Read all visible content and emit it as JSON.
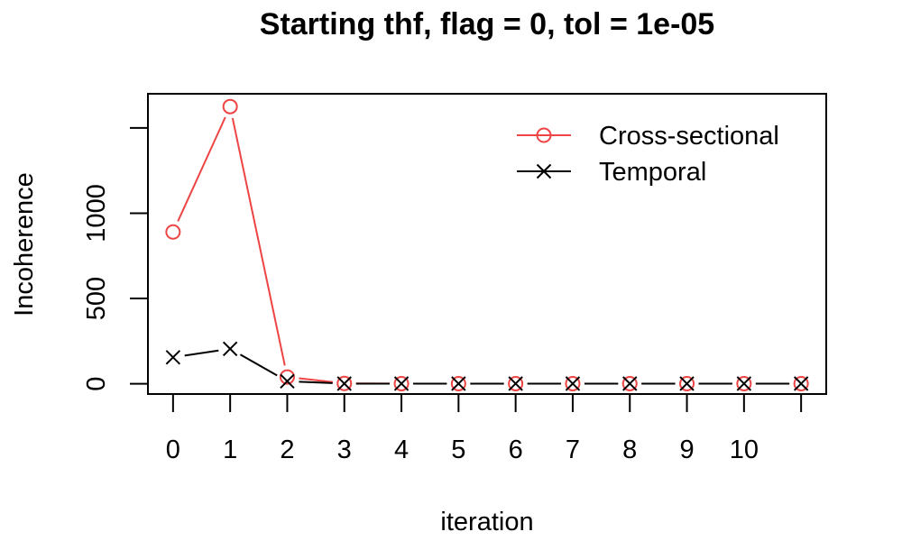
{
  "chart_data": {
    "type": "line",
    "title": "Starting thf, flag = 0, tol = 1e-05",
    "xlabel": "iteration",
    "ylabel": "Incoherence",
    "x": [
      0,
      1,
      2,
      3,
      4,
      5,
      6,
      7,
      8,
      9,
      10,
      11
    ],
    "x_tick_labels": [
      "0",
      "1",
      "2",
      "3",
      "4",
      "5",
      "6",
      "7",
      "8",
      "9",
      "10"
    ],
    "y_ticks": [
      0,
      500,
      1000,
      1500
    ],
    "y_tick_labels": [
      "0",
      "500",
      "1000",
      ""
    ],
    "xlim": [
      -0.44,
      11.44
    ],
    "ylim": [
      -60,
      1700
    ],
    "grid": false,
    "legend_position": "top-right",
    "series": [
      {
        "name": "Cross-sectional",
        "color": "#ee4444",
        "marker": "circle",
        "values": [
          890,
          1625,
          40,
          2,
          1,
          1,
          1,
          1,
          1,
          1,
          1,
          1
        ]
      },
      {
        "name": "Temporal",
        "color": "#000000",
        "marker": "cross",
        "values": [
          155,
          205,
          15,
          1,
          1,
          1,
          1,
          1,
          1,
          1,
          1,
          1
        ]
      }
    ]
  }
}
